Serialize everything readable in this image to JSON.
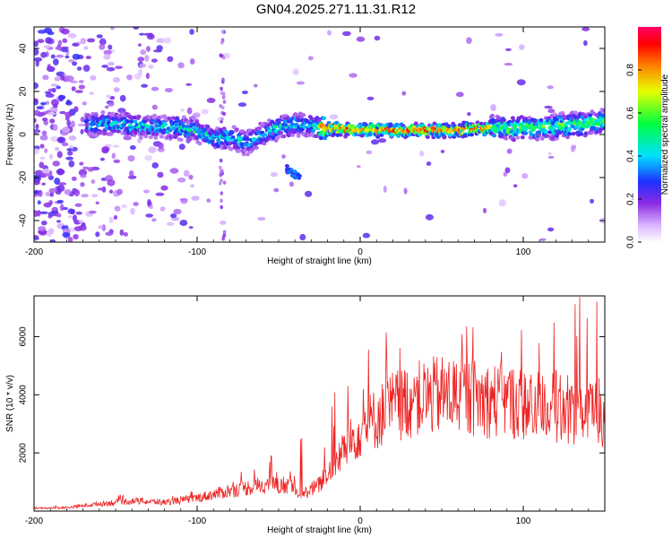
{
  "title": "GN04.2025.271.11.31.R12",
  "chart_data": [
    {
      "type": "heatmap",
      "xlabel": "Height of straight line (km)",
      "ylabel": "Frequency (Hz)",
      "xlim": [
        -200,
        150
      ],
      "ylim": [
        -50,
        50
      ],
      "xticks": [
        -200,
        -100,
        0,
        100
      ],
      "yticks": [
        -40,
        -20,
        0,
        20,
        40
      ],
      "colorbar": {
        "label": "Normalized spectral amplitude",
        "range": [
          0,
          1
        ],
        "ticks": [
          0.0,
          0.2,
          0.4,
          0.6,
          0.8
        ]
      },
      "ridge": {
        "x": [
          -165,
          -150,
          -130,
          -110,
          -100,
          -90,
          -80,
          -70,
          -60,
          -50,
          -40,
          -30,
          -20,
          0,
          20,
          40,
          60,
          80,
          100,
          120,
          140,
          150
        ],
        "y": [
          5,
          5,
          4,
          3,
          2,
          -2,
          -1,
          -4,
          0,
          3,
          5,
          4,
          3,
          2,
          2,
          2,
          2,
          3,
          3,
          4,
          5,
          6
        ]
      },
      "blob": {
        "x": [
          -45,
          -38
        ],
        "y": [
          -16,
          -20
        ]
      }
    },
    {
      "type": "line",
      "xlabel": "Height of straight line (km)",
      "ylabel": "SNR (10 * v/v)",
      "xlim": [
        -200,
        150
      ],
      "ylim": [
        0,
        7400
      ],
      "xticks": [
        -200,
        -100,
        0,
        100
      ],
      "yticks": [
        2000,
        4000,
        6000
      ],
      "color": "#ee2222",
      "envelope": {
        "x": [
          -200,
          -180,
          -160,
          -140,
          -120,
          -100,
          -80,
          -60,
          -45,
          -35,
          -25,
          -20,
          -10,
          0,
          10,
          20,
          30,
          40,
          50,
          60,
          70,
          80,
          90,
          100,
          110,
          120,
          130,
          140,
          150
        ],
        "y": [
          100,
          120,
          250,
          350,
          300,
          450,
          700,
          900,
          900,
          600,
          900,
          1300,
          2100,
          2800,
          3200,
          3600,
          3800,
          3900,
          4000,
          4000,
          3900,
          3800,
          3800,
          3700,
          3600,
          3600,
          3500,
          3400,
          3400
        ]
      }
    }
  ]
}
